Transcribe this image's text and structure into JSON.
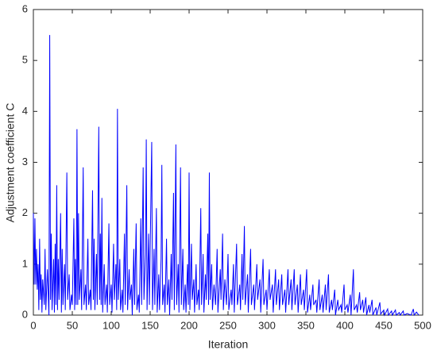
{
  "chart_data": {
    "type": "line",
    "xlabel": "Iteration",
    "ylabel": "Adjustment coefficient C",
    "color": "#0000ff",
    "xlim": [
      0,
      500
    ],
    "xticks": [
      0,
      50,
      100,
      150,
      200,
      250,
      300,
      350,
      400,
      450,
      500
    ],
    "ylim": [
      0,
      6
    ],
    "yticks": [
      0,
      1,
      2,
      3,
      4,
      5,
      6
    ],
    "x": [
      0,
      1,
      2,
      3,
      4,
      5,
      6,
      7,
      8,
      9,
      10,
      11,
      12,
      14,
      15,
      16,
      18,
      20,
      21,
      22,
      23,
      24,
      26,
      27,
      28,
      29,
      30,
      31,
      32,
      33,
      35,
      36,
      37,
      38,
      40,
      41,
      43,
      44,
      46,
      47,
      49,
      50,
      52,
      53,
      54,
      55,
      56,
      57,
      58,
      59,
      61,
      62,
      64,
      65,
      67,
      68,
      70,
      71,
      73,
      74,
      76,
      77,
      78,
      79,
      81,
      82,
      84,
      85,
      86,
      87,
      88,
      89,
      91,
      92,
      94,
      95,
      97,
      98,
      100,
      101,
      103,
      104,
      106,
      107,
      108,
      109,
      111,
      112,
      114,
      115,
      117,
      118,
      120,
      121,
      123,
      124,
      126,
      127,
      129,
      130,
      132,
      133,
      135,
      136,
      138,
      139,
      141,
      142,
      144,
      145,
      146,
      148,
      149,
      152,
      153,
      155,
      156,
      158,
      159,
      161,
      162,
      164,
      165,
      166,
      168,
      169,
      171,
      172,
      174,
      175,
      177,
      178,
      180,
      181,
      183,
      184,
      186,
      187,
      189,
      190,
      192,
      193,
      195,
      196,
      198,
      199,
      200,
      201,
      203,
      204,
      206,
      207,
      209,
      210,
      212,
      213,
      215,
      216,
      218,
      219,
      221,
      222,
      224,
      225,
      226,
      227,
      229,
      230,
      232,
      234,
      236,
      237,
      240,
      241,
      243,
      244,
      246,
      248,
      250,
      251,
      254,
      255,
      257,
      258,
      261,
      262,
      265,
      266,
      268,
      269,
      271,
      272,
      275,
      276,
      279,
      280,
      283,
      284,
      287,
      288,
      291,
      292,
      295,
      296,
      299,
      300,
      303,
      304,
      307,
      308,
      311,
      312,
      315,
      316,
      319,
      320,
      323,
      324,
      327,
      328,
      331,
      332,
      335,
      336,
      339,
      340,
      343,
      344,
      347,
      348,
      351,
      352,
      355,
      356,
      359,
      360,
      363,
      364,
      367,
      368,
      371,
      372,
      375,
      376,
      379,
      380,
      383,
      384,
      387,
      388,
      391,
      392,
      395,
      396,
      399,
      400,
      403,
      404,
      407,
      408,
      411,
      412,
      415,
      416,
      419,
      420,
      423,
      424,
      427,
      428,
      431,
      432,
      435,
      436,
      440,
      441,
      445,
      446,
      450,
      451,
      455,
      456,
      460,
      461,
      465,
      466,
      470,
      471,
      475,
      476,
      480,
      485,
      488,
      489,
      492,
      495
    ],
    "values": [
      2.0,
      0.6,
      1.9,
      0.6,
      1.3,
      0.5,
      1.0,
      0.1,
      1.5,
      0.3,
      0.8,
      0.05,
      0.7,
      0.2,
      1.3,
      0.1,
      0.9,
      0.0,
      5.5,
      0.3,
      1.6,
      0.1,
      1.1,
      0.05,
      1.4,
      0.2,
      2.55,
      0.1,
      1.1,
      0.3,
      2.0,
      0.05,
      1.3,
      0.2,
      1.0,
      0.1,
      2.8,
      0.3,
      0.8,
      0.1,
      0.4,
      0.2,
      1.9,
      0.1,
      1.1,
      0.2,
      3.65,
      0.2,
      2.0,
      0.3,
      0.9,
      0.1,
      2.9,
      0.2,
      0.6,
      0.1,
      1.5,
      0.2,
      0.5,
      0.1,
      2.45,
      0.3,
      1.5,
      0.1,
      1.2,
      0.2,
      3.7,
      0.3,
      1.6,
      0.2,
      2.3,
      0.05,
      1.0,
      0.2,
      0.6,
      0.05,
      1.8,
      0.2,
      0.6,
      0.05,
      1.4,
      0.3,
      1.0,
      0.1,
      4.05,
      0.3,
      1.1,
      0.1,
      0.5,
      0.05,
      1.6,
      0.2,
      2.55,
      0.1,
      0.9,
      0.3,
      0.6,
      0.0,
      1.3,
      0.2,
      1.8,
      0.1,
      0.4,
      0.05,
      1.9,
      0.2,
      2.9,
      0.3,
      1.2,
      3.45,
      0.1,
      1.6,
      0.2,
      3.4,
      0.1,
      1.3,
      0.2,
      2.1,
      0.05,
      0.8,
      0.1,
      1.1,
      2.95,
      0.2,
      0.6,
      0.05,
      1.5,
      0.2,
      0.7,
      0.0,
      1.2,
      0.3,
      2.4,
      0.1,
      3.35,
      0.2,
      1.0,
      0.05,
      2.9,
      0.2,
      1.3,
      0.1,
      0.6,
      0.05,
      1.0,
      0.2,
      2.8,
      0.1,
      1.4,
      0.3,
      0.7,
      0.05,
      1.0,
      0.2,
      0.5,
      0.1,
      2.1,
      0.2,
      1.2,
      0.05,
      0.8,
      0.3,
      1.6,
      0.2,
      2.8,
      0.3,
      1.0,
      0.1,
      0.6,
      0.2,
      1.3,
      0.05,
      0.9,
      0.3,
      1.6,
      0.1,
      0.7,
      0.2,
      1.2,
      0.1,
      0.5,
      0.2,
      1.0,
      0.05,
      1.4,
      0.2,
      0.6,
      0.1,
      1.2,
      0.3,
      1.75,
      0.2,
      0.8,
      0.05,
      1.3,
      0.2,
      0.6,
      0.1,
      1.0,
      0.3,
      0.7,
      0.05,
      1.1,
      0.2,
      0.5,
      0.1,
      0.9,
      0.3,
      0.6,
      0.05,
      0.9,
      0.2,
      0.7,
      0.1,
      0.8,
      0.2,
      0.5,
      0.05,
      0.9,
      0.2,
      0.7,
      0.1,
      0.9,
      0.2,
      0.6,
      0.05,
      0.8,
      0.2,
      0.5,
      0.1,
      0.9,
      0.05,
      0.4,
      0.1,
      0.6,
      0.2,
      0.3,
      0.05,
      0.7,
      0.1,
      0.4,
      0.05,
      0.6,
      0.1,
      0.8,
      0.05,
      0.3,
      0.1,
      0.5,
      0.0,
      0.3,
      0.1,
      0.2,
      0.05,
      0.6,
      0.1,
      0.2,
      0.05,
      0.4,
      0.0,
      0.9,
      0.1,
      0.2,
      0.05,
      0.45,
      0.1,
      0.3,
      0.05,
      0.35,
      0.0,
      0.2,
      0.05,
      0.3,
      0.0,
      0.15,
      0.0,
      0.25,
      0.02,
      0.1,
      0.0,
      0.12,
      0.0,
      0.08,
      0.0,
      0.1,
      0.0,
      0.05,
      0.0,
      0.08,
      0.0,
      0.03,
      0.0,
      0.12,
      0.0,
      0.06,
      0.0
    ]
  }
}
